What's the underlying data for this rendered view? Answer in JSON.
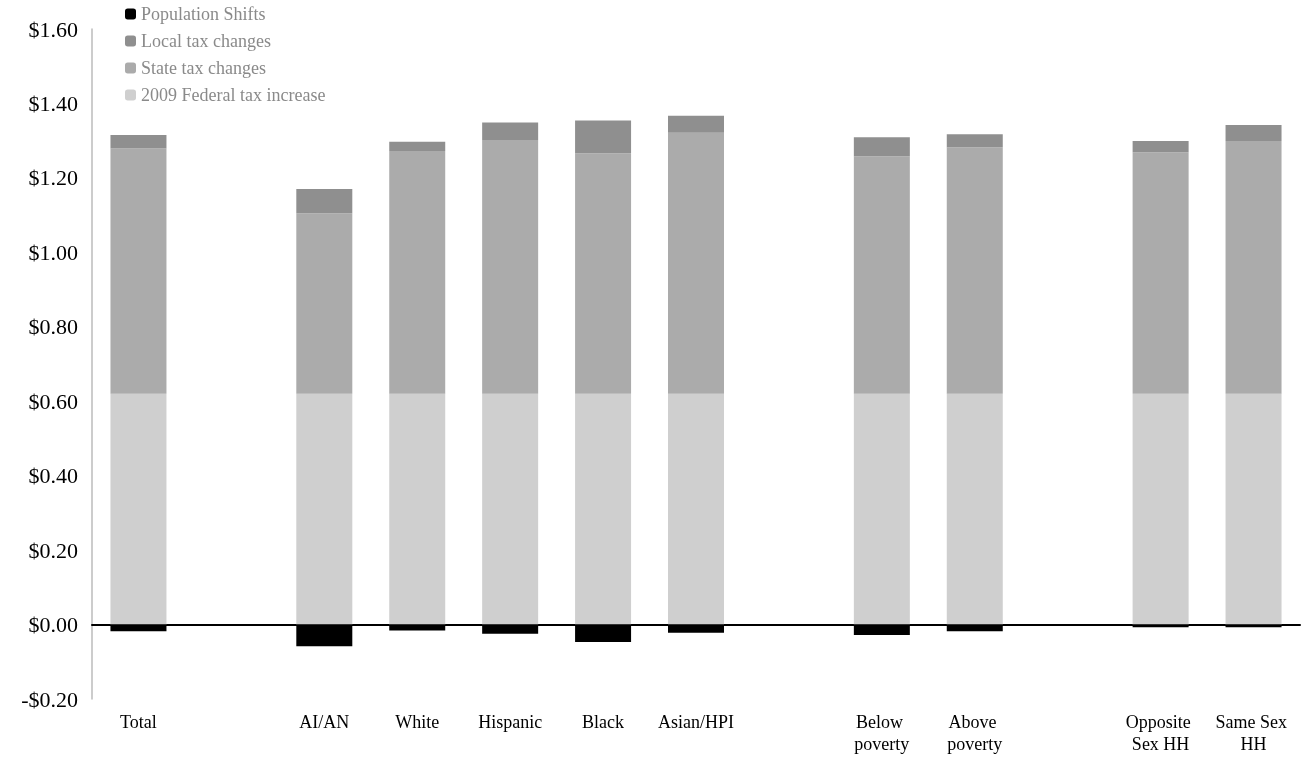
{
  "chart_data": {
    "type": "bar",
    "stacked": true,
    "legend": "top left",
    "categories": [
      "Total",
      null,
      "AI/AN",
      "White",
      "Hispanic",
      "Black",
      "Asian/HPI",
      null,
      "Below poverty",
      "Above poverty",
      null,
      "Opposite Sex HH",
      "Same Sex HH"
    ],
    "series": [
      {
        "name": "2009 Federal tax increase",
        "color": "#cfcfcf",
        "values": [
          0.62,
          null,
          0.62,
          0.62,
          0.62,
          0.62,
          0.62,
          null,
          0.62,
          0.62,
          null,
          0.62,
          0.62
        ]
      },
      {
        "name": "State tax changes",
        "color": "#ababab",
        "values": [
          0.659,
          null,
          0.485,
          0.652,
          0.682,
          0.646,
          0.701,
          null,
          0.638,
          0.662,
          null,
          0.649,
          0.679
        ]
      },
      {
        "name": "Local tax changes",
        "color": "#8f8f8f",
        "values": [
          0.036,
          null,
          0.065,
          0.025,
          0.047,
          0.088,
          0.046,
          null,
          0.051,
          0.035,
          null,
          0.03,
          0.043
        ]
      },
      {
        "name": "Population Shifts",
        "color": "#000000",
        "values": [
          -0.018,
          null,
          -0.058,
          -0.016,
          -0.025,
          -0.047,
          -0.022,
          null,
          -0.028,
          -0.018,
          null,
          -0.007,
          -0.007
        ]
      }
    ],
    "ylim": [
      -0.2,
      1.6
    ],
    "yticks": [
      {
        "value": -0.2,
        "label": "-$0.20"
      },
      {
        "value": 0,
        "label": "$0.00"
      },
      {
        "value": 0.2,
        "label": "$0.20"
      },
      {
        "value": 0.4,
        "label": "$0.40"
      },
      {
        "value": 0.6,
        "label": "$0.60"
      },
      {
        "value": 0.8,
        "label": "$0.80"
      },
      {
        "value": 1.0,
        "label": "$1.00"
      },
      {
        "value": 1.2,
        "label": "$1.20"
      },
      {
        "value": 1.4,
        "label": "$1.40"
      },
      {
        "value": 1.6,
        "label": "$1.60"
      }
    ]
  }
}
